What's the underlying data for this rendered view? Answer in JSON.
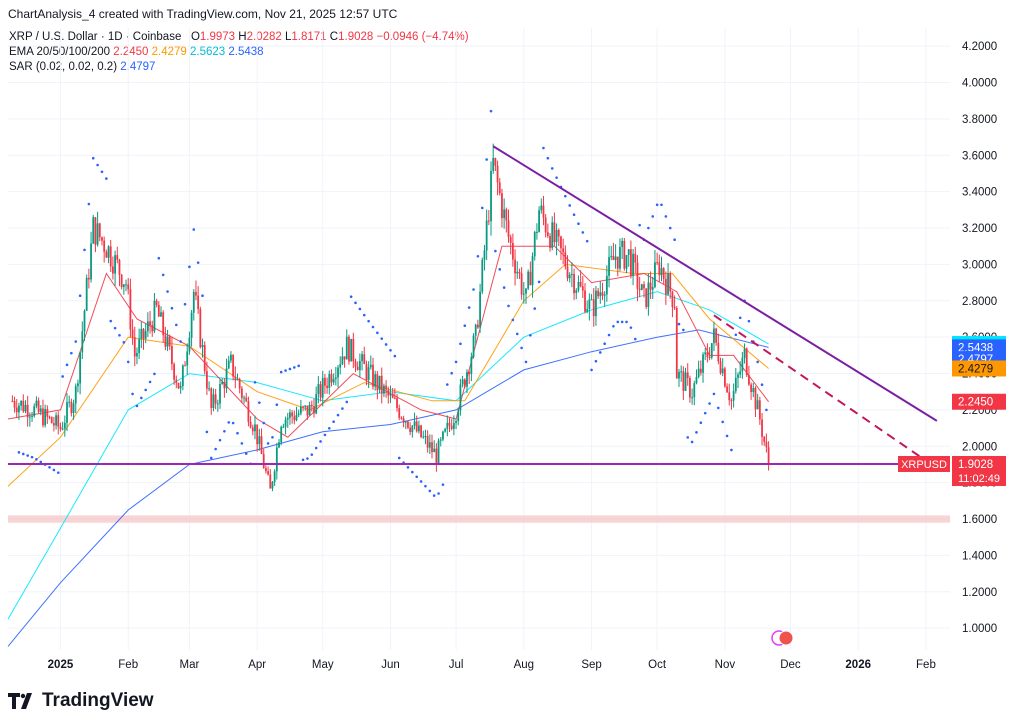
{
  "header": {
    "credit": "ChartAnalysis_4 created with TradingView.com, Nov 21, 2025 12:57 UTC",
    "symbol": "XRP / U.S. Dollar · 1D · Coinbase",
    "ohlc": {
      "o_label": "O",
      "o": "1.9973",
      "h_label": "H",
      "h": "2.0282",
      "l_label": "L",
      "l": "1.8171",
      "c_label": "C",
      "c": "1.9028",
      "change": "−0.0946 (−4.74%)"
    },
    "ema": {
      "label": "EMA 20/50/100/200",
      "v20": "2.2450",
      "v50": "2.4279",
      "v100": "2.5623",
      "v200": "2.5438"
    },
    "sar": {
      "label": "SAR (0.02, 0.02, 0.2)",
      "value": "2.4797"
    }
  },
  "branding": {
    "logo_text": "TradingView",
    "logo_icon": "tradingview-logo-icon"
  },
  "colors": {
    "up": "#089981",
    "down": "#f23645",
    "ema20": "#f23645",
    "ema50": "#ff9800",
    "ema100": "#00e5ff",
    "ema200": "#2962ff",
    "sar": "#2962ff",
    "trendline": "#7b1fa2",
    "support": "#9c27b0",
    "zone": "#f5c6c6"
  },
  "chart_data": {
    "type": "candlestick",
    "symbol": "XRPUSD",
    "x_axis": {
      "ticks": [
        "2025",
        "Feb",
        "Mar",
        "Apr",
        "May",
        "Jun",
        "Jul",
        "Aug",
        "Sep",
        "Oct",
        "Nov",
        "Dec",
        "2026",
        "Feb"
      ],
      "tick_dates": [
        "2025-01-01",
        "2025-02-01",
        "2025-03-01",
        "2025-04-01",
        "2025-05-01",
        "2025-06-01",
        "2025-07-01",
        "2025-08-01",
        "2025-09-01",
        "2025-10-01",
        "2025-11-01",
        "2025-12-01",
        "2026-01-01",
        "2026-02-01"
      ],
      "range": [
        "2024-12-08",
        "2026-02-12"
      ]
    },
    "y_axis": {
      "ticks": [
        "1.0000",
        "1.2000",
        "1.4000",
        "1.6000",
        "1.8000",
        "2.0000",
        "2.2000",
        "2.4000",
        "2.6000",
        "2.8000",
        "3.0000",
        "3.2000",
        "3.4000",
        "3.6000",
        "3.8000",
        "4.0000",
        "4.2000"
      ],
      "range": [
        0.88,
        4.3
      ]
    },
    "price_labels": [
      {
        "value": "2.5623",
        "series": "EMA 100",
        "color": "#00e5ff"
      },
      {
        "value": "2.5438",
        "series": "EMA 200",
        "color": "#2962ff"
      },
      {
        "value": "2.4797",
        "series": "SAR",
        "color": "#2962ff"
      },
      {
        "value": "2.4279",
        "series": "EMA 50",
        "color": "#ff9800"
      },
      {
        "value": "2.2450",
        "series": "EMA 20",
        "color": "#f23645"
      },
      {
        "value": "1.9028",
        "series": "XRPUSD",
        "color": "#f23645",
        "tag": "XRPUSD",
        "countdown": "11:02:49"
      }
    ],
    "key_closes": [
      {
        "date": "2024-12-10",
        "close": 2.25
      },
      {
        "date": "2024-12-20",
        "close": 2.2
      },
      {
        "date": "2025-01-01",
        "close": 2.1
      },
      {
        "date": "2025-01-08",
        "close": 2.3
      },
      {
        "date": "2025-01-16",
        "close": 3.2
      },
      {
        "date": "2025-01-22",
        "close": 3.1
      },
      {
        "date": "2025-01-31",
        "close": 2.9
      },
      {
        "date": "2025-02-04",
        "close": 2.5
      },
      {
        "date": "2025-02-14",
        "close": 2.75
      },
      {
        "date": "2025-02-25",
        "close": 2.3
      },
      {
        "date": "2025-03-03",
        "close": 2.85
      },
      {
        "date": "2025-03-11",
        "close": 2.2
      },
      {
        "date": "2025-03-20",
        "close": 2.45
      },
      {
        "date": "2025-03-31",
        "close": 2.1
      },
      {
        "date": "2025-04-07",
        "close": 1.75
      },
      {
        "date": "2025-04-12",
        "close": 2.15
      },
      {
        "date": "2025-04-25",
        "close": 2.2
      },
      {
        "date": "2025-05-12",
        "close": 2.55
      },
      {
        "date": "2025-05-22",
        "close": 2.4
      },
      {
        "date": "2025-06-05",
        "close": 2.2
      },
      {
        "date": "2025-06-22",
        "close": 1.95
      },
      {
        "date": "2025-07-01",
        "close": 2.2
      },
      {
        "date": "2025-07-10",
        "close": 2.6
      },
      {
        "date": "2025-07-18",
        "close": 3.55
      },
      {
        "date": "2025-07-25",
        "close": 3.15
      },
      {
        "date": "2025-08-02",
        "close": 2.8
      },
      {
        "date": "2025-08-08",
        "close": 3.3
      },
      {
        "date": "2025-08-14",
        "close": 3.15
      },
      {
        "date": "2025-08-25",
        "close": 2.9
      },
      {
        "date": "2025-09-01",
        "close": 2.75
      },
      {
        "date": "2025-09-12",
        "close": 3.05
      },
      {
        "date": "2025-09-18",
        "close": 3.05
      },
      {
        "date": "2025-09-25",
        "close": 2.8
      },
      {
        "date": "2025-10-02",
        "close": 3.0
      },
      {
        "date": "2025-10-09",
        "close": 2.8
      },
      {
        "date": "2025-10-10",
        "close": 2.4
      },
      {
        "date": "2025-10-17",
        "close": 2.3
      },
      {
        "date": "2025-10-27",
        "close": 2.6
      },
      {
        "date": "2025-11-04",
        "close": 2.25
      },
      {
        "date": "2025-11-10",
        "close": 2.5
      },
      {
        "date": "2025-11-17",
        "close": 2.15
      },
      {
        "date": "2025-11-21",
        "close": 1.9028
      }
    ],
    "ema20": [
      [
        "2024-12-08",
        2.15
      ],
      [
        "2025-01-01",
        2.2
      ],
      [
        "2025-01-22",
        2.95
      ],
      [
        "2025-02-05",
        2.7
      ],
      [
        "2025-03-01",
        2.55
      ],
      [
        "2025-04-01",
        2.15
      ],
      [
        "2025-04-15",
        2.05
      ],
      [
        "2025-05-15",
        2.4
      ],
      [
        "2025-06-15",
        2.2
      ],
      [
        "2025-07-01",
        2.15
      ],
      [
        "2025-07-22",
        3.1
      ],
      [
        "2025-08-15",
        3.1
      ],
      [
        "2025-09-01",
        2.9
      ],
      [
        "2025-09-25",
        2.95
      ],
      [
        "2025-10-10",
        2.85
      ],
      [
        "2025-10-25",
        2.5
      ],
      [
        "2025-11-05",
        2.5
      ],
      [
        "2025-11-21",
        2.245
      ]
    ],
    "ema50": [
      [
        "2024-12-08",
        1.78
      ],
      [
        "2025-01-01",
        2.05
      ],
      [
        "2025-02-01",
        2.6
      ],
      [
        "2025-03-01",
        2.55
      ],
      [
        "2025-04-01",
        2.3
      ],
      [
        "2025-04-25",
        2.2
      ],
      [
        "2025-05-20",
        2.35
      ],
      [
        "2025-06-20",
        2.25
      ],
      [
        "2025-07-05",
        2.25
      ],
      [
        "2025-08-01",
        2.8
      ],
      [
        "2025-08-20",
        3.0
      ],
      [
        "2025-09-20",
        2.95
      ],
      [
        "2025-10-08",
        2.95
      ],
      [
        "2025-10-25",
        2.7
      ],
      [
        "2025-11-21",
        2.4279
      ]
    ],
    "ema100": [
      [
        "2024-12-08",
        1.05
      ],
      [
        "2025-01-01",
        1.55
      ],
      [
        "2025-02-01",
        2.2
      ],
      [
        "2025-03-01",
        2.4
      ],
      [
        "2025-04-01",
        2.35
      ],
      [
        "2025-05-01",
        2.25
      ],
      [
        "2025-06-01",
        2.3
      ],
      [
        "2025-07-01",
        2.25
      ],
      [
        "2025-08-01",
        2.6
      ],
      [
        "2025-09-01",
        2.75
      ],
      [
        "2025-10-01",
        2.85
      ],
      [
        "2025-10-25",
        2.75
      ],
      [
        "2025-11-21",
        2.5623
      ]
    ],
    "ema200": [
      [
        "2024-12-08",
        0.9
      ],
      [
        "2025-01-01",
        1.25
      ],
      [
        "2025-02-01",
        1.65
      ],
      [
        "2025-03-01",
        1.9
      ],
      [
        "2025-04-01",
        1.98
      ],
      [
        "2025-05-01",
        2.08
      ],
      [
        "2025-06-01",
        2.12
      ],
      [
        "2025-07-01",
        2.2
      ],
      [
        "2025-08-01",
        2.42
      ],
      [
        "2025-09-01",
        2.52
      ],
      [
        "2025-10-01",
        2.6
      ],
      [
        "2025-10-20",
        2.64
      ],
      [
        "2025-11-21",
        2.5438
      ]
    ],
    "trendline": {
      "from": [
        "2025-07-18",
        3.65
      ],
      "to": [
        "2026-02-06",
        2.14
      ]
    },
    "projection": {
      "from": [
        "2025-10-27",
        2.72
      ],
      "to": [
        "2026-02-06",
        1.88
      ]
    },
    "support_level": 1.9028,
    "support_zone": [
      1.58,
      1.62
    ]
  }
}
